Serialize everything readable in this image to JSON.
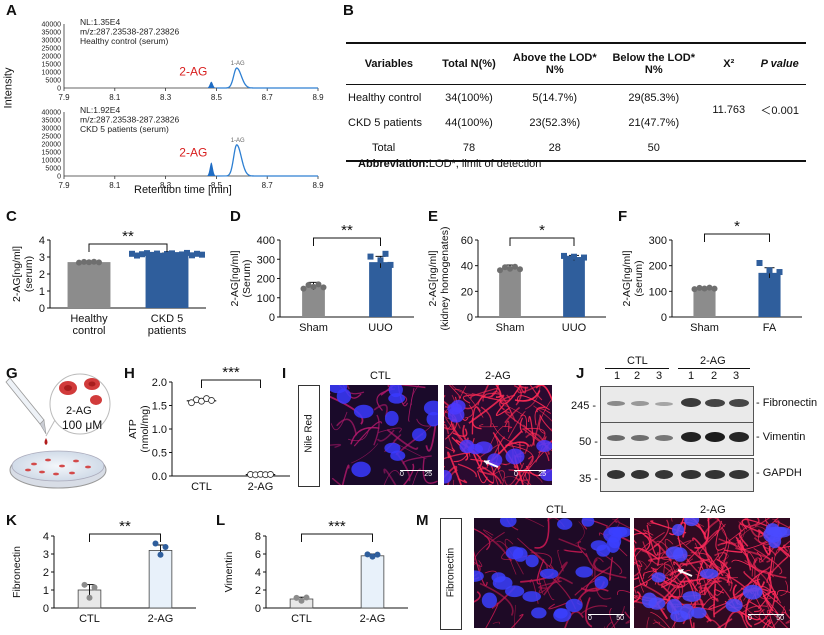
{
  "panels": {
    "A": "A",
    "B": "B",
    "C": "C",
    "D": "D",
    "E": "E",
    "F": "F",
    "G": "G",
    "H": "H",
    "I": "I",
    "J": "J",
    "K": "K",
    "L": "L",
    "M": "M"
  },
  "chromatograms": {
    "ylabel": "Intensity",
    "xlabel": "Retention time [min]",
    "xticks": [
      "7.9",
      "8.1",
      "8.3",
      "8.5",
      "8.7",
      "8.9"
    ],
    "xrange": [
      7.9,
      8.9
    ],
    "top": {
      "info": [
        "NL:1.35E4",
        "m/z:287.23538-287.23826",
        "Healthy control (serum)"
      ],
      "yticks": [
        "40000",
        "35000",
        "30000",
        "25000",
        "20000",
        "15000",
        "10000",
        "5000",
        "0"
      ],
      "peak_label": "2-AG",
      "peak2_label": "1-AG",
      "peaks": [
        {
          "rt": 8.48,
          "height": 4000
        },
        {
          "rt": 8.58,
          "height": 12500
        }
      ]
    },
    "bottom": {
      "info": [
        "NL:1.92E4",
        "m/z:287.23538-287.23826",
        "CKD 5 patients (serum)"
      ],
      "yticks": [
        "40000",
        "35000",
        "30000",
        "25000",
        "20000",
        "15000",
        "10000",
        "5000",
        "0"
      ],
      "peak_label": "2-AG",
      "peak2_label": "1-AG",
      "peaks": [
        {
          "rt": 8.48,
          "height": 8500
        },
        {
          "rt": 8.58,
          "height": 19500
        }
      ]
    }
  },
  "table": {
    "headers": [
      "Variables",
      "Total N(%)",
      "Above the LOD* N%",
      "Below the LOD* N%",
      "X²",
      "P value"
    ],
    "rows": [
      [
        "Healthy control",
        "34(100%)",
        "5(14.7%)",
        "29(85.3%)"
      ],
      [
        "CKD 5 patients",
        "44(100%)",
        "23(52.3%)",
        "21(47.7%)"
      ],
      [
        "Total",
        "78",
        "28",
        "50"
      ]
    ],
    "chi2": "11.763",
    "pvalue": "＜0.001",
    "abbreviation_label": "Abbreviation:",
    "abbreviation_text": "LOD*, limit of detection"
  },
  "chart_data": [
    {
      "panel": "C",
      "type": "bar",
      "categories": [
        "Healthy control",
        "CKD 5 patients"
      ],
      "values": [
        2.7,
        3.15
      ],
      "errors": [
        0.05,
        0.08
      ],
      "ylim": [
        0,
        4
      ],
      "yticks": [
        "0",
        "1",
        "2",
        "3",
        "4"
      ],
      "ylabel": "2-AG[ng/ml] (serum)",
      "significance": "**",
      "colors": [
        "#8c8c8c",
        "#2f5e9c"
      ]
    },
    {
      "panel": "D",
      "type": "bar",
      "categories": [
        "Sham",
        "UUO"
      ],
      "values": [
        160,
        285
      ],
      "errors": [
        20,
        30
      ],
      "ylim": [
        0,
        400
      ],
      "yticks": [
        "0",
        "100",
        "200",
        "300",
        "400"
      ],
      "ylabel": "2-AG[ng/ml] (Serum)",
      "significance": "**",
      "colors": [
        "#8c8c8c",
        "#2f5e9c"
      ]
    },
    {
      "panel": "E",
      "type": "bar",
      "categories": [
        "Sham",
        "UUO"
      ],
      "values": [
        38,
        46
      ],
      "errors": [
        2.5,
        2
      ],
      "ylim": [
        0,
        60
      ],
      "yticks": [
        "0",
        "20",
        "40",
        "60"
      ],
      "ylabel": "2-AG[ng/ml] (kidney homogenates)",
      "significance": "*",
      "colors": [
        "#8c8c8c",
        "#2f5e9c"
      ]
    },
    {
      "panel": "F",
      "type": "bar",
      "categories": [
        "Sham",
        "FA"
      ],
      "values": [
        112,
        172
      ],
      "errors": [
        5,
        20
      ],
      "ylim": [
        0,
        300
      ],
      "yticks": [
        "0",
        "100",
        "200",
        "300"
      ],
      "ylabel": "2-AG[ng/ml] (serum)",
      "significance": "*",
      "colors": [
        "#8c8c8c",
        "#2f5e9c"
      ]
    },
    {
      "panel": "H",
      "type": "scatter-bar",
      "categories": [
        "CTL",
        "2-AG"
      ],
      "values": [
        1.6,
        0.03
      ],
      "errors": [
        0.05,
        0.01
      ],
      "ylim": [
        0,
        2
      ],
      "yticks": [
        "0.0",
        "0.5",
        "1.0",
        "1.5",
        "2.0"
      ],
      "ylabel": "ATP (nmol/mg)",
      "significance": "***"
    },
    {
      "panel": "K",
      "type": "bar",
      "categories": [
        "CTL",
        "2-AG"
      ],
      "values": [
        1.0,
        3.2
      ],
      "errors": [
        0.3,
        0.3
      ],
      "ylim": [
        0,
        4
      ],
      "yticks": [
        "0",
        "1",
        "2",
        "3",
        "4"
      ],
      "ylabel": "Fibronectin",
      "significance": "**",
      "colors": [
        "#e8e8e8",
        "#e8f1fa"
      ]
    },
    {
      "panel": "L",
      "type": "bar",
      "categories": [
        "CTL",
        "2-AG"
      ],
      "values": [
        1.0,
        5.8
      ],
      "errors": [
        0.2,
        0.2
      ],
      "ylim": [
        0,
        8
      ],
      "yticks": [
        "0",
        "2",
        "4",
        "6",
        "8"
      ],
      "ylabel": "Vimentin",
      "significance": "***",
      "colors": [
        "#e8e8e8",
        "#e8f1fa"
      ]
    }
  ],
  "panelG": {
    "label": "2-AG",
    "conc": "100 μM"
  },
  "panelI": {
    "stain": "Nile Red",
    "ctl": "CTL",
    "treat": "2-AG",
    "scale_left": "0",
    "scale_right": "25"
  },
  "panelJ": {
    "group1": "CTL",
    "group2": "2-AG",
    "lanes": [
      "1",
      "2",
      "3",
      "1",
      "2",
      "3"
    ],
    "markers": [
      "245 -",
      "50 -",
      "35 -"
    ],
    "bands": [
      "- Fibronectin",
      "- Vimentin",
      "- GAPDH"
    ]
  },
  "panelM": {
    "stain": "Fibronectin",
    "ctl": "CTL",
    "treat": "2-AG",
    "scale_left": "0",
    "scale_right": "50"
  }
}
